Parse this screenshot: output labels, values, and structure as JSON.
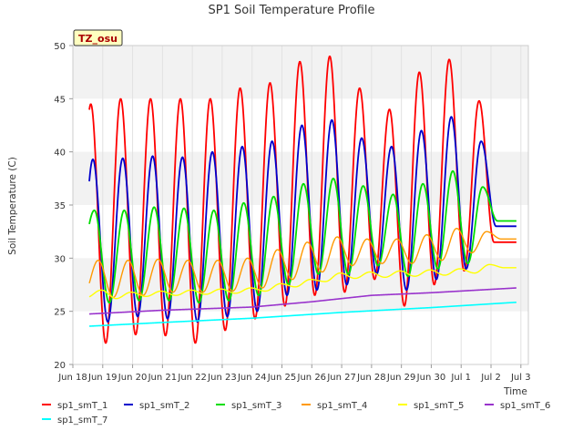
{
  "chart_data": {
    "type": "line",
    "title": "SP1 Soil Temperature Profile",
    "xlabel": "Time",
    "ylabel": "Soil Temperature (C)",
    "ylim": [
      20,
      50
    ],
    "xlim": [
      0,
      15.25
    ],
    "yticks": [
      20,
      25,
      30,
      35,
      40,
      45,
      50
    ],
    "xticks": [
      {
        "label": "Jun 18",
        "pos": 0
      },
      {
        "label": "Jun 19",
        "pos": 1
      },
      {
        "label": "Jun 20",
        "pos": 2
      },
      {
        "label": "Jun 21",
        "pos": 3
      },
      {
        "label": "Jun 22",
        "pos": 4
      },
      {
        "label": "Jun 23",
        "pos": 5
      },
      {
        "label": "Jun 24",
        "pos": 6
      },
      {
        "label": "Jun 25",
        "pos": 7
      },
      {
        "label": "Jun 26",
        "pos": 8
      },
      {
        "label": "Jun 27",
        "pos": 9
      },
      {
        "label": "Jun 28",
        "pos": 10
      },
      {
        "label": "Jun 29",
        "pos": 11
      },
      {
        "label": "Jun 30",
        "pos": 12
      },
      {
        "label": "Jul 1",
        "pos": 13
      },
      {
        "label": "Jul 2",
        "pos": 14
      },
      {
        "label": "Jul 3",
        "pos": 15
      }
    ],
    "site_label": "TZ_osu",
    "x_start": 0.55,
    "x_end": 14.85,
    "series": [
      {
        "name": "sp1_smT_1",
        "color": "#ff0000",
        "width": 1.8,
        "peak_phase": 0.6,
        "peaks": [
          44.5,
          45.0,
          45.0,
          45.0,
          45.0,
          46.0,
          46.5,
          48.5,
          49.0,
          46.0,
          44.0,
          47.5,
          48.7,
          44.8
        ],
        "troughs": [
          22.5,
          22.0,
          22.8,
          22.7,
          22.0,
          23.2,
          24.3,
          25.5,
          26.5,
          26.8,
          28.0,
          25.5,
          27.5,
          28.8,
          31.5
        ]
      },
      {
        "name": "sp1_smT_2",
        "color": "#0000cc",
        "width": 1.8,
        "peak_phase": 0.67,
        "peaks": [
          39.3,
          39.4,
          39.6,
          39.5,
          40.0,
          40.5,
          41.0,
          42.5,
          43.0,
          41.3,
          40.5,
          42.0,
          43.3,
          41.0
        ],
        "troughs": [
          24.0,
          24.0,
          24.5,
          24.3,
          24.0,
          24.5,
          25.0,
          26.5,
          27.0,
          27.5,
          28.5,
          27.0,
          28.0,
          29.0,
          33.0
        ]
      },
      {
        "name": "sp1_smT_3",
        "color": "#00dd00",
        "width": 1.8,
        "peak_phase": 0.72,
        "peaks": [
          34.5,
          34.5,
          34.8,
          34.7,
          34.5,
          35.2,
          35.8,
          37.0,
          37.5,
          36.8,
          36.0,
          37.0,
          38.2,
          36.7
        ],
        "troughs": [
          29.5,
          25.8,
          26.0,
          26.0,
          25.8,
          26.0,
          26.5,
          27.5,
          28.5,
          28.5,
          29.3,
          28.3,
          29.0,
          29.5,
          33.5
        ]
      },
      {
        "name": "sp1_smT_4",
        "color": "#ff9900",
        "width": 1.4,
        "peak_phase": 0.85,
        "peaks": [
          29.8,
          29.8,
          29.9,
          29.8,
          29.8,
          30.0,
          30.8,
          31.5,
          32.0,
          31.8,
          31.8,
          32.2,
          32.8,
          32.5
        ],
        "troughs": [
          26.5,
          26.3,
          26.5,
          26.8,
          26.8,
          26.9,
          27.2,
          28.0,
          28.7,
          29.3,
          29.5,
          29.5,
          29.8,
          30.5,
          31.8
        ]
      },
      {
        "name": "sp1_smT_5",
        "color": "#ffff00",
        "width": 1.4,
        "peak_phase": 0.95,
        "peaks": [
          27.0,
          26.8,
          26.9,
          27.0,
          27.1,
          27.2,
          27.6,
          28.0,
          28.6,
          28.7,
          28.8,
          28.9,
          29.0,
          29.4
        ],
        "troughs": [
          26.3,
          26.2,
          26.4,
          26.5,
          26.6,
          26.7,
          26.9,
          27.3,
          27.8,
          28.1,
          28.2,
          28.3,
          28.4,
          28.6,
          29.1
        ]
      },
      {
        "name": "sp1_smT_6",
        "color": "#9933cc",
        "width": 1.6,
        "trend": [
          [
            0.55,
            24.75
          ],
          [
            3,
            25.1
          ],
          [
            6,
            25.4
          ],
          [
            8,
            25.9
          ],
          [
            10,
            26.5
          ],
          [
            12,
            26.75
          ],
          [
            14.85,
            27.2
          ]
        ]
      },
      {
        "name": "sp1_smT_7",
        "color": "#00ffff",
        "width": 1.6,
        "trend": [
          [
            0.55,
            23.6
          ],
          [
            3,
            23.95
          ],
          [
            6,
            24.35
          ],
          [
            9,
            24.9
          ],
          [
            12,
            25.35
          ],
          [
            14.85,
            25.85
          ]
        ]
      }
    ]
  }
}
